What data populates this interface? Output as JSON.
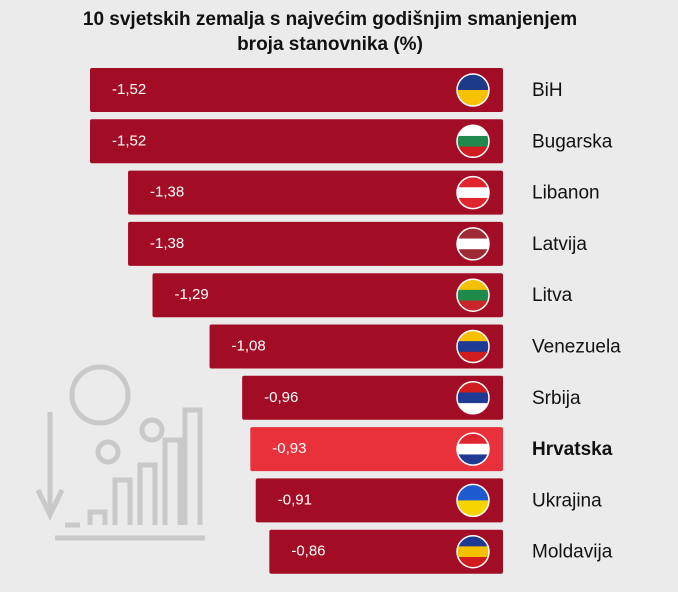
{
  "chart_data": {
    "type": "hbar",
    "title": [
      "10 svjetskih zemalja s najvećim godišnjim smanjenjem",
      "broja stanovnika (%)"
    ],
    "categories": [
      "BiH",
      "Bugarska",
      "Libanon",
      "Latvija",
      "Litva",
      "Venezuela",
      "Srbija",
      "Hrvatska",
      "Ukrajina",
      "Moldavija"
    ],
    "values": [
      -1.52,
      -1.52,
      -1.38,
      -1.38,
      -1.29,
      -1.08,
      -0.96,
      -0.93,
      -0.91,
      -0.86
    ],
    "value_labels": [
      "-1,52",
      "-1,52",
      "-1,38",
      "-1,38",
      "-1,29",
      "-1,08",
      "-0,96",
      "-0,93",
      "-0,91",
      "-0,86"
    ],
    "colors": [
      "#a30c25",
      "#a30c25",
      "#a30c25",
      "#a30c25",
      "#a30c25",
      "#a30c25",
      "#a30c25",
      "#e8313a",
      "#a30c25",
      "#a30c25"
    ]
  }
}
